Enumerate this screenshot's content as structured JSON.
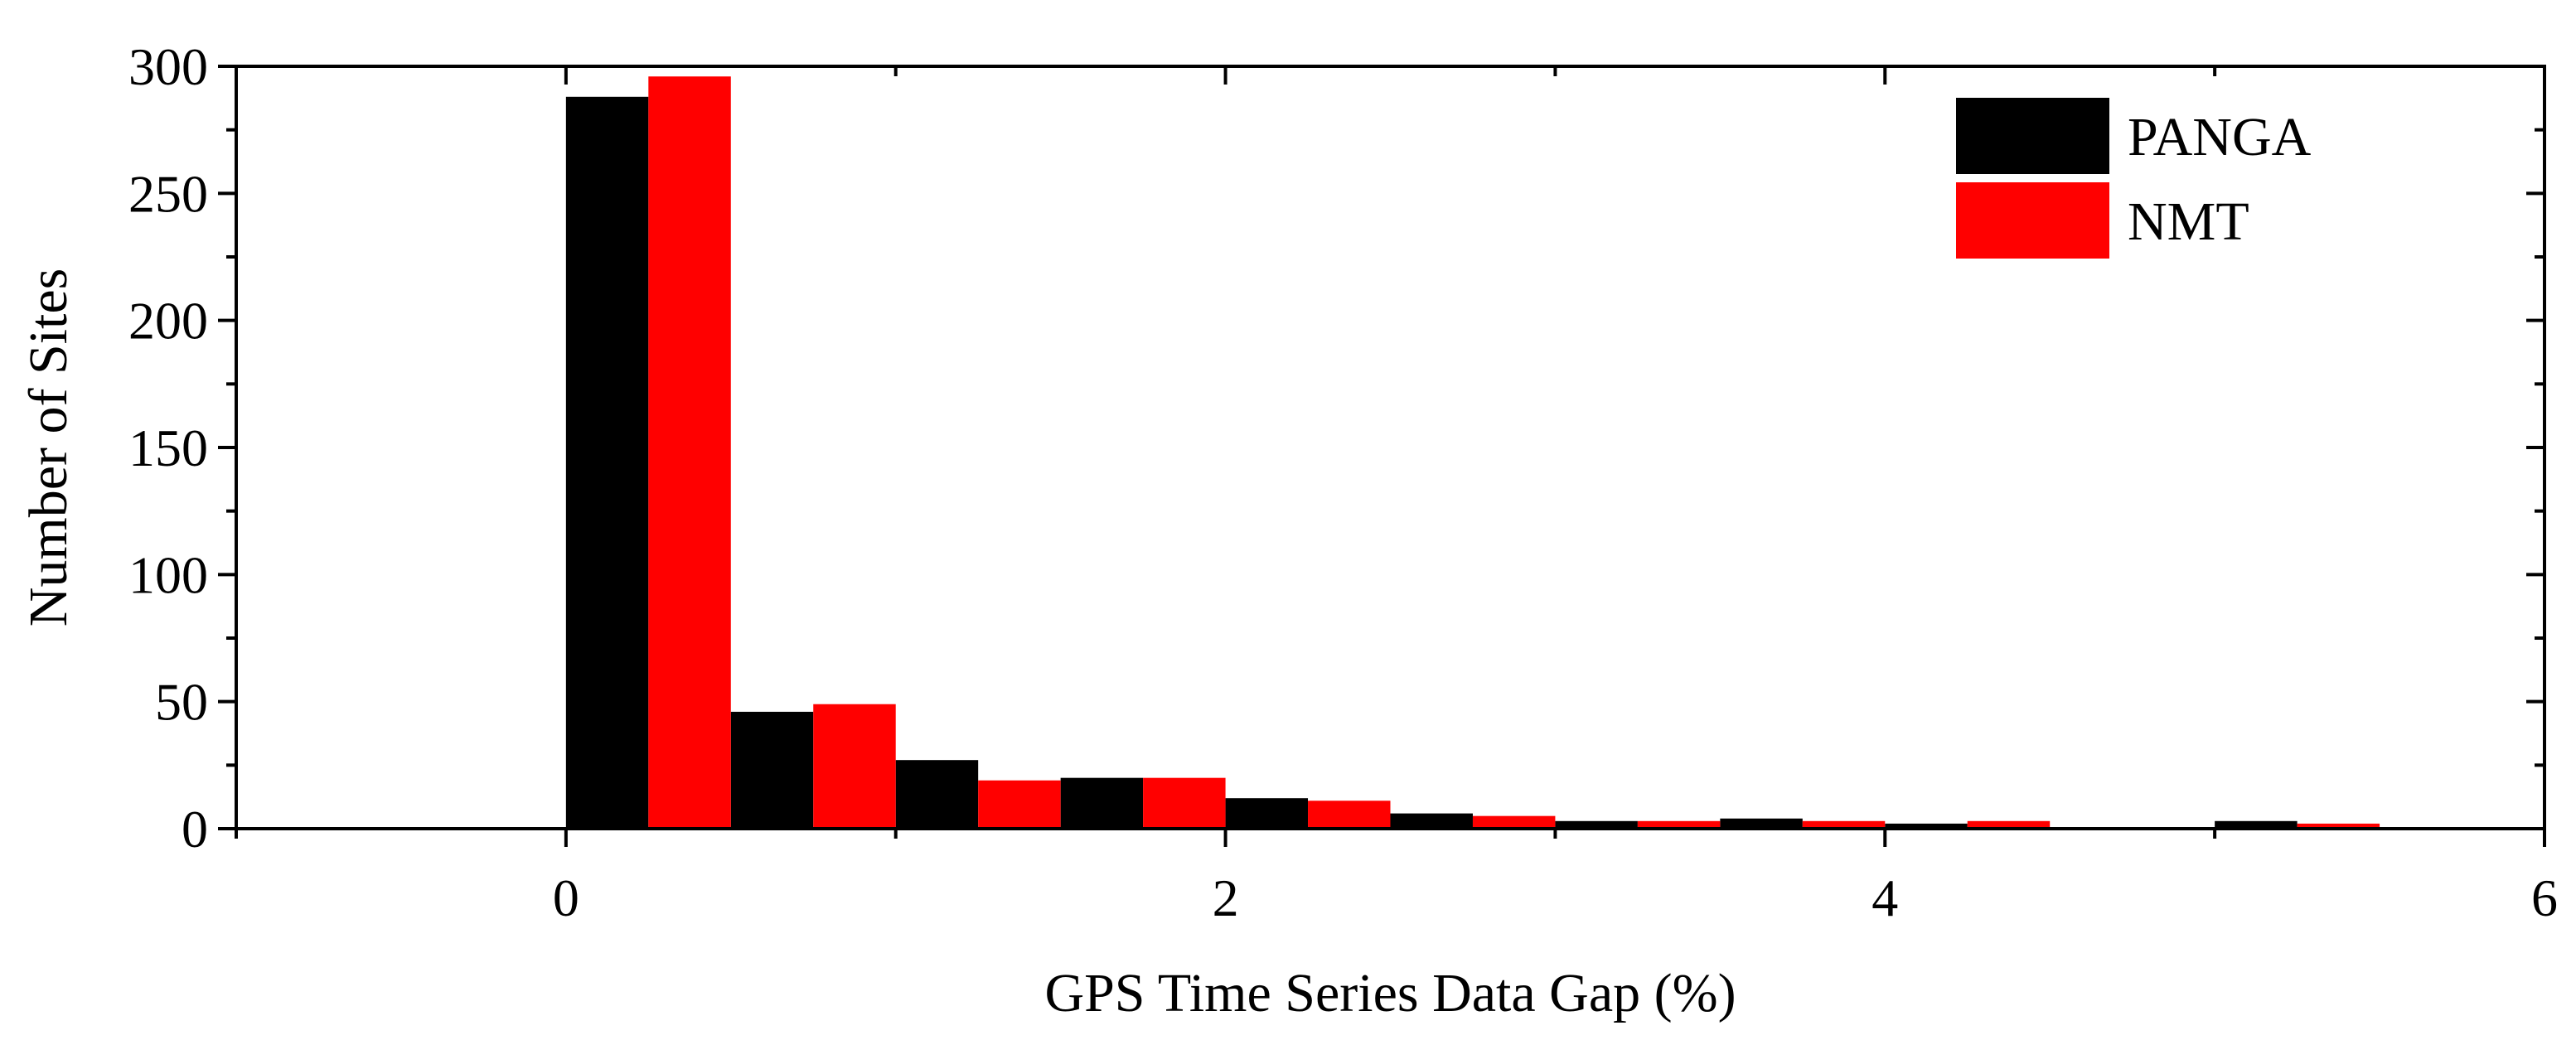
{
  "chart_data": {
    "type": "bar",
    "title": "",
    "xlabel": "GPS Time Series Data Gap (%)",
    "ylabel": "Number of  Sites",
    "xlim": [
      -1,
      6
    ],
    "ylim": [
      0,
      300
    ],
    "xticks": [
      0,
      2,
      4,
      6
    ],
    "yticks": [
      0,
      50,
      100,
      150,
      200,
      250,
      300
    ],
    "bin_width": 0.5,
    "bin_starts": [
      0,
      0.5,
      1,
      1.5,
      2,
      2.5,
      3,
      3.5,
      4,
      4.5,
      5
    ],
    "legend_position": "top-right",
    "grid": false,
    "series": [
      {
        "name": "PANGA",
        "color": "#000000",
        "values": [
          288,
          46,
          27,
          20,
          12,
          6,
          3,
          4,
          2,
          0,
          3
        ]
      },
      {
        "name": "NMT",
        "color": "#ff0000",
        "values": [
          296,
          49,
          19,
          20,
          11,
          5,
          3,
          3,
          3,
          0,
          2
        ]
      }
    ]
  }
}
